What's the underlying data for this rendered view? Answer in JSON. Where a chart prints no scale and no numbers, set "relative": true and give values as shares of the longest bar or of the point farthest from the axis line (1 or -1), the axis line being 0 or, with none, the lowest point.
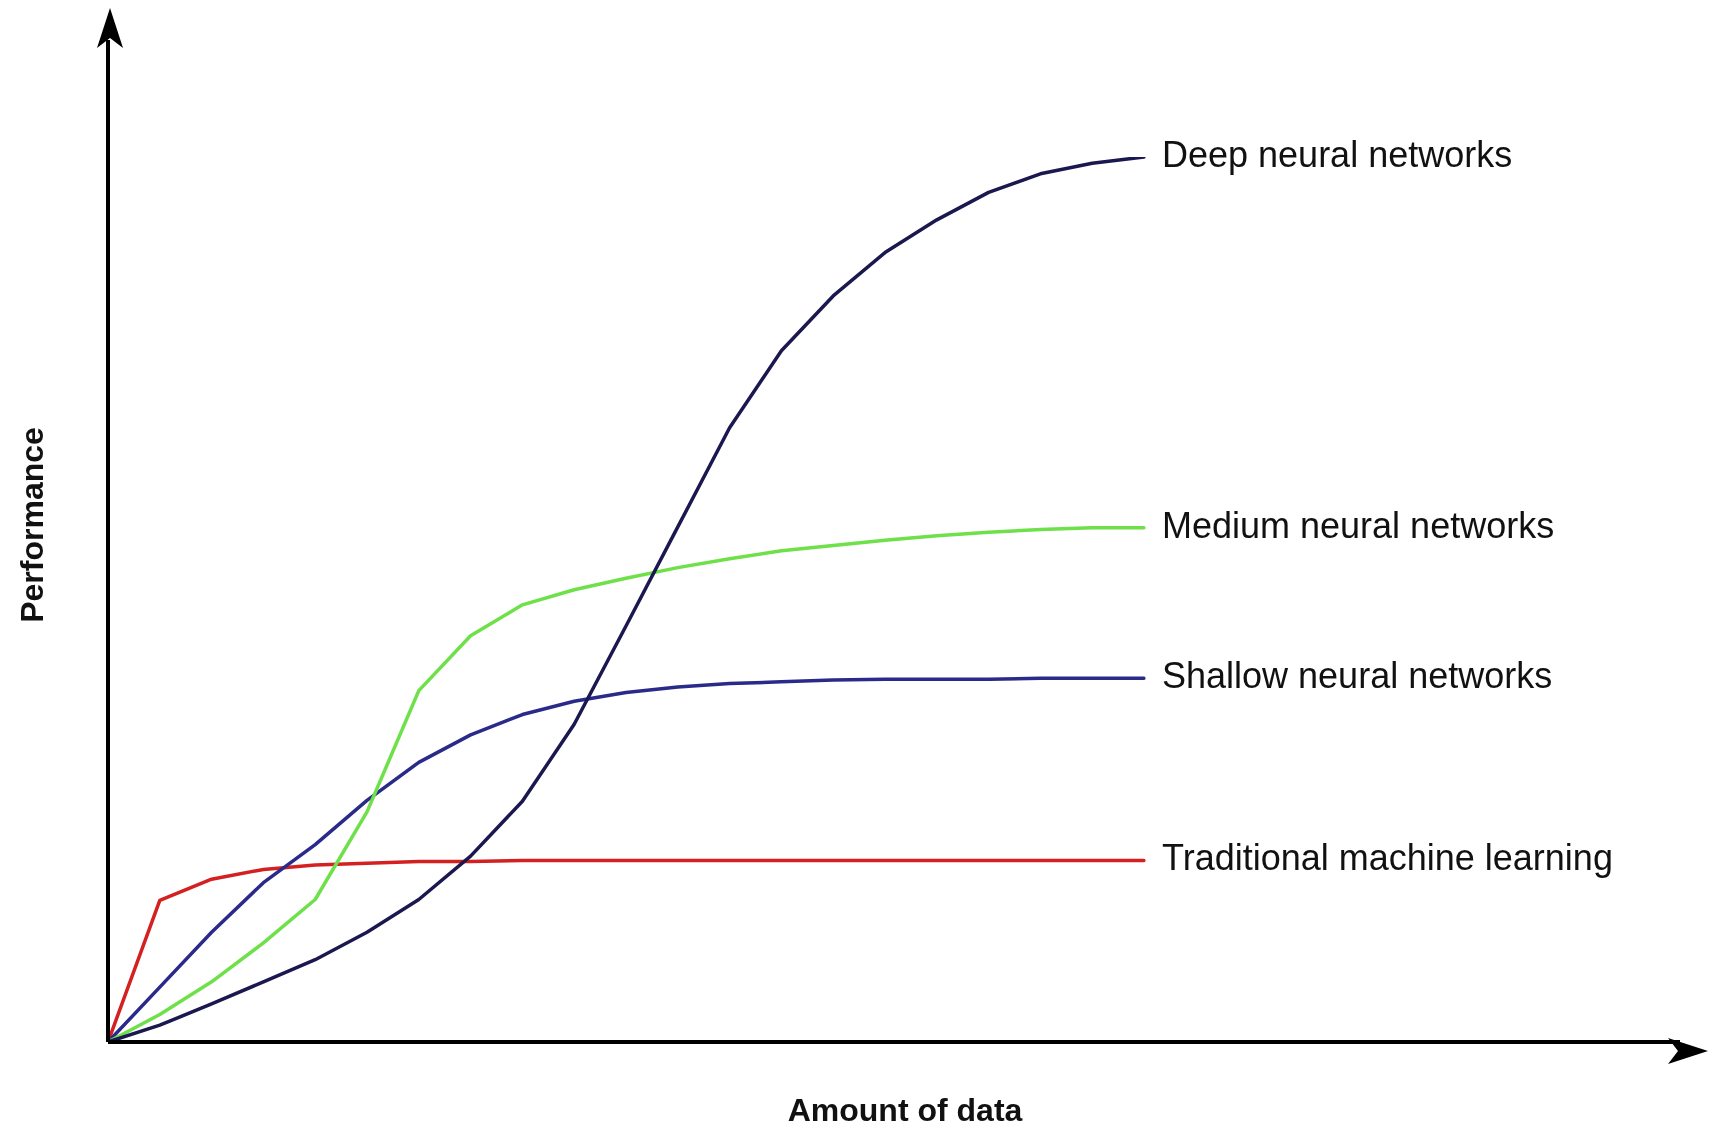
{
  "chart_data": {
    "type": "line",
    "relative": true,
    "xlabel": "Amount of data",
    "ylabel": "Performance",
    "legend": false,
    "grid": false,
    "marker": "none",
    "line_style": "solid",
    "categories": [
      null,
      null,
      null,
      null,
      null,
      null,
      null,
      null,
      null,
      null,
      null,
      null,
      null,
      null,
      null,
      null,
      null,
      null,
      null,
      null,
      null
    ],
    "series": [
      {
        "name": "Deep neural networks",
        "color": "#1b1850",
        "values": [
          0,
          0.019,
          0.043,
          0.068,
          0.093,
          0.124,
          0.161,
          0.21,
          0.272,
          0.359,
          0.47,
          0.582,
          0.694,
          0.781,
          0.843,
          0.892,
          0.929,
          0.96,
          0.981,
          0.993,
          1
        ]
      },
      {
        "name": "Medium neural networks",
        "color": "#6ee04a",
        "values": [
          0,
          0.031,
          0.068,
          0.112,
          0.161,
          0.26,
          0.397,
          0.459,
          0.494,
          0.511,
          0.524,
          0.536,
          0.546,
          0.555,
          0.561,
          0.567,
          0.572,
          0.576,
          0.579,
          0.581,
          0.581
        ]
      },
      {
        "name": "Shallow neural networks",
        "color": "#2a2a8a",
        "values": [
          0,
          0.062,
          0.124,
          0.18,
          0.223,
          0.273,
          0.316,
          0.347,
          0.37,
          0.385,
          0.395,
          0.401,
          0.405,
          0.407,
          0.409,
          0.41,
          0.41,
          0.41,
          0.411,
          0.411,
          0.411
        ]
      },
      {
        "name": "Traditional machine learning",
        "color": "#d42020",
        "values": [
          0,
          0.16,
          0.184,
          0.195,
          0.2,
          0.202,
          0.204,
          0.204,
          0.205,
          0.205,
          0.205,
          0.205,
          0.205,
          0.205,
          0.205,
          0.205,
          0.205,
          0.205,
          0.205,
          0.205,
          0.205
        ]
      }
    ]
  }
}
